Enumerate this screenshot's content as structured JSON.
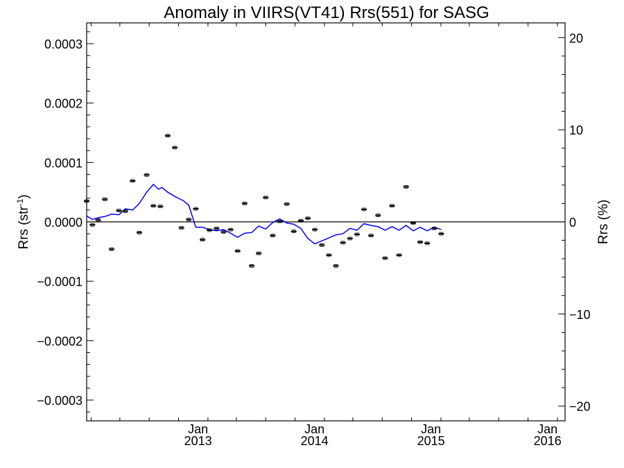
{
  "chart_data": {
    "type": "scatter",
    "title": "Anomaly in VIIRS(VT41) Rrs(551) for SASG",
    "ylabel_left": {
      "base": "Rrs (str",
      "sup": "-1",
      "close": ")"
    },
    "ylabel_right": "Rrs (%)",
    "xlabel": "",
    "xlim": [
      "2012-01-18",
      "2016-02-25"
    ],
    "ylim_left": [
      -0.000335,
      0.000335
    ],
    "ylim_right": [
      -21.6,
      21.6
    ],
    "grid": false,
    "zero_line": true,
    "x_ticks": [
      {
        "date": "2013-01-01",
        "month": "Jan",
        "year": "2013"
      },
      {
        "date": "2014-01-01",
        "month": "Jan",
        "year": "2014"
      },
      {
        "date": "2015-01-01",
        "month": "Jan",
        "year": "2015"
      },
      {
        "date": "2016-01-01",
        "month": "Jan",
        "year": "2016"
      }
    ],
    "y_ticks_left": [
      {
        "value": 0.0003,
        "label": "0.0003"
      },
      {
        "value": 0.0002,
        "label": "0.0002"
      },
      {
        "value": 0.0001,
        "label": "0.0001"
      },
      {
        "value": 0.0,
        "label": "0.0000"
      },
      {
        "value": -0.0001,
        "label": "−0.0001"
      },
      {
        "value": -0.0002,
        "label": "−0.0002"
      },
      {
        "value": -0.0003,
        "label": "−0.0003"
      }
    ],
    "y_ticks_right": [
      {
        "value": 20,
        "label": "20"
      },
      {
        "value": 10,
        "label": "10"
      },
      {
        "value": 0,
        "label": "0"
      },
      {
        "value": -10,
        "label": "−10"
      },
      {
        "value": -20,
        "label": "−20"
      }
    ],
    "series": [
      {
        "type": "scatter_errorbar",
        "color": "#000000",
        "points": [
          {
            "x": "2012-01-18",
            "y": 3.5e-05
          },
          {
            "x": "2012-02-05",
            "y": -5e-06
          },
          {
            "x": "2012-02-23",
            "y": 3e-06
          },
          {
            "x": "2012-03-15",
            "y": 3.8e-05
          },
          {
            "x": "2012-04-05",
            "y": -4.6e-05
          },
          {
            "x": "2012-04-28",
            "y": 1.9e-05
          },
          {
            "x": "2012-05-18",
            "y": 1.8e-05
          },
          {
            "x": "2012-06-10",
            "y": 6.9e-05
          },
          {
            "x": "2012-07-01",
            "y": -1.8e-05
          },
          {
            "x": "2012-07-24",
            "y": 7.9e-05
          },
          {
            "x": "2012-08-14",
            "y": 2.7e-05
          },
          {
            "x": "2012-09-05",
            "y": 2.6e-05
          },
          {
            "x": "2012-09-28",
            "y": 0.000145
          },
          {
            "x": "2012-10-20",
            "y": 0.000125
          },
          {
            "x": "2012-11-10",
            "y": -1e-05
          },
          {
            "x": "2012-12-03",
            "y": 4e-06
          },
          {
            "x": "2012-12-25",
            "y": 2.2e-05
          },
          {
            "x": "2013-01-15",
            "y": -3e-05
          },
          {
            "x": "2013-02-06",
            "y": -1.4e-05
          },
          {
            "x": "2013-02-28",
            "y": -1.1e-05
          },
          {
            "x": "2013-03-22",
            "y": -1.7e-05
          },
          {
            "x": "2013-04-13",
            "y": -1.3e-05
          },
          {
            "x": "2013-05-05",
            "y": -4.9e-05
          },
          {
            "x": "2013-05-27",
            "y": 3.1e-05
          },
          {
            "x": "2013-06-18",
            "y": -7.4e-05
          },
          {
            "x": "2013-07-10",
            "y": -5.3e-05
          },
          {
            "x": "2013-08-01",
            "y": 4.1e-05
          },
          {
            "x": "2013-08-23",
            "y": -2.3e-05
          },
          {
            "x": "2013-09-14",
            "y": 1e-06
          },
          {
            "x": "2013-10-06",
            "y": 3e-05
          },
          {
            "x": "2013-10-28",
            "y": -1.6e-05
          },
          {
            "x": "2013-11-19",
            "y": 2e-06
          },
          {
            "x": "2013-12-11",
            "y": 6e-06
          },
          {
            "x": "2014-01-02",
            "y": -1.3e-05
          },
          {
            "x": "2014-01-24",
            "y": -3.9e-05
          },
          {
            "x": "2014-02-15",
            "y": -5.6e-05
          },
          {
            "x": "2014-03-09",
            "y": -7.4e-05
          },
          {
            "x": "2014-03-31",
            "y": -3.5e-05
          },
          {
            "x": "2014-04-22",
            "y": -2.8e-05
          },
          {
            "x": "2014-05-14",
            "y": -2.1e-05
          },
          {
            "x": "2014-06-05",
            "y": 2.1e-05
          },
          {
            "x": "2014-06-27",
            "y": -2.3e-05
          },
          {
            "x": "2014-07-19",
            "y": 1.1e-05
          },
          {
            "x": "2014-08-10",
            "y": -6.1e-05
          },
          {
            "x": "2014-09-01",
            "y": 2.7e-05
          },
          {
            "x": "2014-09-23",
            "y": -5.6e-05
          },
          {
            "x": "2014-10-15",
            "y": 5.9e-05
          },
          {
            "x": "2014-11-06",
            "y": -2e-06
          },
          {
            "x": "2014-11-28",
            "y": -3.4e-05
          },
          {
            "x": "2014-12-20",
            "y": -3.6e-05
          },
          {
            "x": "2015-01-11",
            "y": -1.1e-05
          },
          {
            "x": "2015-02-02",
            "y": -2e-05
          }
        ]
      },
      {
        "type": "line",
        "name": "",
        "color": "#0000ff",
        "points": [
          {
            "x": "2012-01-18",
            "y": 1e-05
          },
          {
            "x": "2012-02-05",
            "y": 4e-06
          },
          {
            "x": "2012-02-23",
            "y": 7e-06
          },
          {
            "x": "2012-03-15",
            "y": 9e-06
          },
          {
            "x": "2012-04-05",
            "y": 1.3e-05
          },
          {
            "x": "2012-04-28",
            "y": 1.2e-05
          },
          {
            "x": "2012-05-18",
            "y": 2.2e-05
          },
          {
            "x": "2012-06-10",
            "y": 2e-05
          },
          {
            "x": "2012-07-01",
            "y": 3.1e-05
          },
          {
            "x": "2012-07-24",
            "y": 5e-05
          },
          {
            "x": "2012-08-14",
            "y": 6.3e-05
          },
          {
            "x": "2012-08-30",
            "y": 5.5e-05
          },
          {
            "x": "2012-09-10",
            "y": 5.8e-05
          },
          {
            "x": "2012-09-28",
            "y": 5e-05
          },
          {
            "x": "2012-10-20",
            "y": 4.3e-05
          },
          {
            "x": "2012-11-15",
            "y": 3.6e-05
          },
          {
            "x": "2012-12-03",
            "y": 2.8e-05
          },
          {
            "x": "2012-12-25",
            "y": -9e-06
          },
          {
            "x": "2013-01-15",
            "y": -9e-06
          },
          {
            "x": "2013-02-06",
            "y": -1.3e-05
          },
          {
            "x": "2013-02-28",
            "y": -1.5e-05
          },
          {
            "x": "2013-03-22",
            "y": -1.3e-05
          },
          {
            "x": "2013-04-13",
            "y": -1.9e-05
          },
          {
            "x": "2013-05-05",
            "y": -2.6e-05
          },
          {
            "x": "2013-05-27",
            "y": -1.9e-05
          },
          {
            "x": "2013-06-18",
            "y": -1.8e-05
          },
          {
            "x": "2013-07-10",
            "y": -7e-06
          },
          {
            "x": "2013-08-01",
            "y": -1.2e-05
          },
          {
            "x": "2013-08-23",
            "y": -1e-06
          },
          {
            "x": "2013-09-14",
            "y": 5e-06
          },
          {
            "x": "2013-10-06",
            "y": -2e-06
          },
          {
            "x": "2013-10-28",
            "y": -4e-06
          },
          {
            "x": "2013-11-19",
            "y": -1.1e-05
          },
          {
            "x": "2013-12-11",
            "y": -2.8e-05
          },
          {
            "x": "2014-01-02",
            "y": -3.7e-05
          },
          {
            "x": "2014-01-24",
            "y": -3.2e-05
          },
          {
            "x": "2014-02-15",
            "y": -2.7e-05
          },
          {
            "x": "2014-03-09",
            "y": -2.2e-05
          },
          {
            "x": "2014-03-31",
            "y": -2e-05
          },
          {
            "x": "2014-04-22",
            "y": -1.1e-05
          },
          {
            "x": "2014-05-14",
            "y": -1.4e-05
          },
          {
            "x": "2014-06-05",
            "y": -3e-06
          },
          {
            "x": "2014-06-27",
            "y": -6e-06
          },
          {
            "x": "2014-07-19",
            "y": -8e-06
          },
          {
            "x": "2014-08-10",
            "y": -1.4e-05
          },
          {
            "x": "2014-09-01",
            "y": -8e-06
          },
          {
            "x": "2014-09-23",
            "y": -1.4e-05
          },
          {
            "x": "2014-10-15",
            "y": -6e-06
          },
          {
            "x": "2014-11-06",
            "y": -1.5e-05
          },
          {
            "x": "2014-11-28",
            "y": -9e-06
          },
          {
            "x": "2014-12-20",
            "y": -1.5e-05
          },
          {
            "x": "2015-01-11",
            "y": -9e-06
          },
          {
            "x": "2015-02-02",
            "y": -1.3e-05
          }
        ]
      }
    ]
  }
}
